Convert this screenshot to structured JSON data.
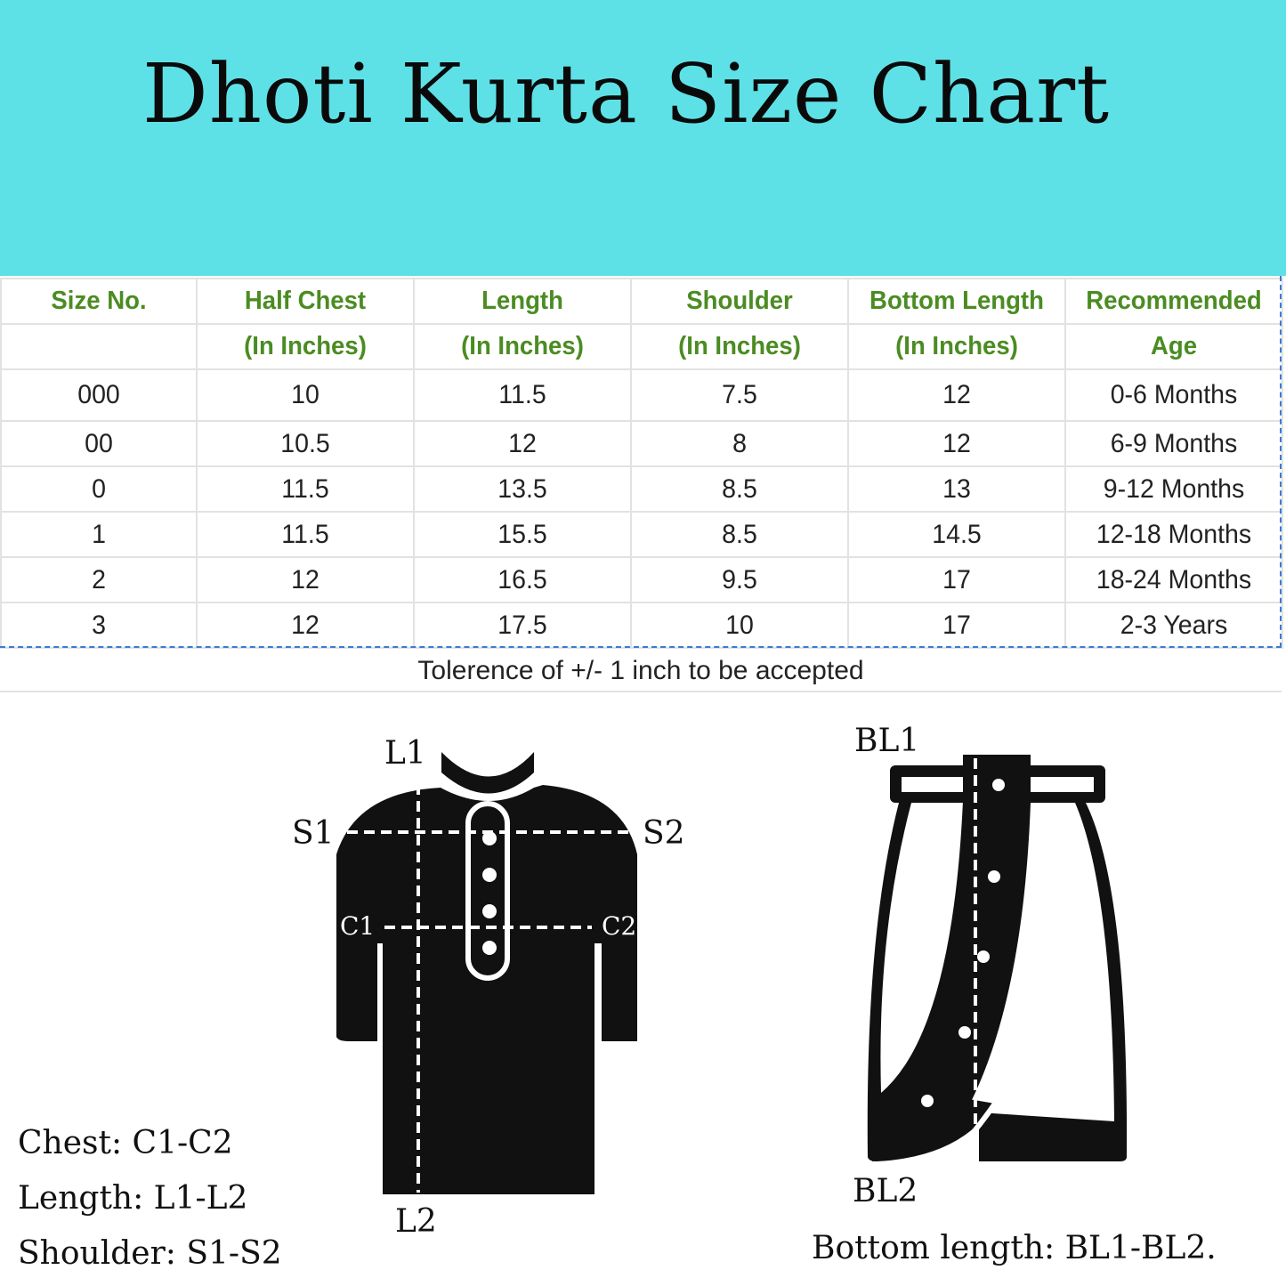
{
  "title": "Dhoti Kurta Size Chart",
  "colors": {
    "banner": "#5ee1e6",
    "header_text": "#4b8c22"
  },
  "table": {
    "headers_row1": [
      "Size No.",
      "Half Chest",
      "Length",
      "Shoulder",
      "Bottom Length",
      "Recommended"
    ],
    "headers_row2": [
      "",
      "(In Inches)",
      "(In Inches)",
      "(In Inches)",
      "(In Inches)",
      "Age"
    ],
    "rows": [
      [
        "000",
        "10",
        "11.5",
        "7.5",
        "12",
        "0-6 Months"
      ],
      [
        "00",
        "10.5",
        "12",
        "8",
        "12",
        "6-9 Months"
      ],
      [
        "0",
        "11.5",
        "13.5",
        "8.5",
        "13",
        "9-12 Months"
      ],
      [
        "1",
        "11.5",
        "15.5",
        "8.5",
        "14.5",
        "12-18 Months"
      ],
      [
        "2",
        "12",
        "16.5",
        "9.5",
        "17",
        "18-24 Months"
      ],
      [
        "3",
        "12",
        "17.5",
        "10",
        "17",
        "2-3 Years"
      ]
    ],
    "note": "Tolerence of +/- 1 inch to be accepted"
  },
  "diagram": {
    "kurta_labels": {
      "l1": "L1",
      "l2": "L2",
      "s1": "S1",
      "s2": "S2",
      "c1": "C1",
      "c2": "C2"
    },
    "dhoti_labels": {
      "bl1": "BL1",
      "bl2": "BL2"
    }
  },
  "legend": {
    "chest": "Chest: C1-C2",
    "length": "Length: L1-L2",
    "shoulder": "Shoulder: S1-S2",
    "bottom": "Bottom length: BL1-BL2."
  }
}
